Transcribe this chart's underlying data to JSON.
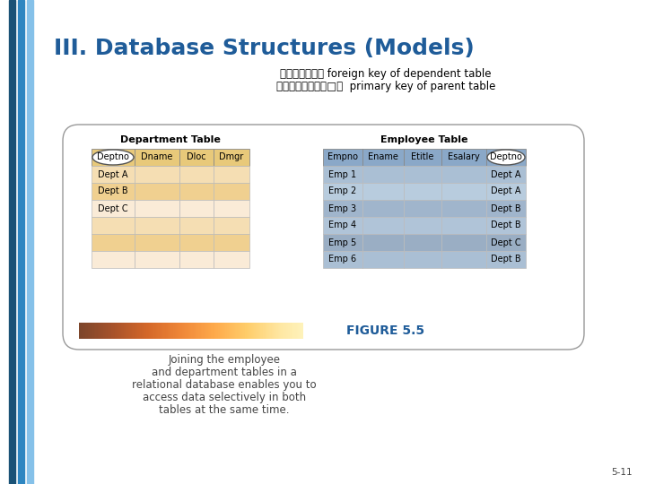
{
  "title": "III. Database Structures (Models)",
  "title_color": "#1F5C99",
  "subtitle_line1": "使用附表之外鍵 foreign key of dependent table",
  "subtitle_line2": "至主表之主鍵進行□找  primary key of parent table",
  "subtitle_color": "#000000",
  "bg_color": "#FFFFFF",
  "left_stripe_colors": [
    "#1A5276",
    "#2E86C1",
    "#85C1E9"
  ],
  "dept_table_title": "Department Table",
  "dept_headers": [
    "Deptno",
    "Dname",
    "Dloc",
    "Dmgr"
  ],
  "dept_rows": [
    [
      "Dept A",
      "",
      "",
      ""
    ],
    [
      "Dept B",
      "",
      "",
      ""
    ],
    [
      "Dept C",
      "",
      "",
      ""
    ],
    [
      "",
      "",
      "",
      ""
    ],
    [
      "",
      "",
      "",
      ""
    ],
    [
      "",
      "",
      "",
      ""
    ]
  ],
  "dept_header_bg": "#E8C97A",
  "dept_row_bgs": [
    "#F5DEB3",
    "#F0D090",
    "#FAEBD7",
    "#F5DEB3",
    "#F0D090",
    "#FAEBD7"
  ],
  "emp_table_title": "Employee Table",
  "emp_headers": [
    "Empno",
    "Ename",
    "Etitle",
    "Esalary",
    "Deptno"
  ],
  "emp_rows": [
    [
      "Emp 1",
      "",
      "",
      "",
      "Dept A"
    ],
    [
      "Emp 2",
      "",
      "",
      "",
      "Dept A"
    ],
    [
      "Emp 3",
      "",
      "",
      "",
      "Dept B"
    ],
    [
      "Emp 4",
      "",
      "",
      "",
      "Dept B"
    ],
    [
      "Emp 5",
      "",
      "",
      "",
      "Dept C"
    ],
    [
      "Emp 6",
      "",
      "",
      "",
      "Dept B"
    ]
  ],
  "emp_header_bg": "#8AA8C8",
  "emp_row_bgs": [
    "#AABFD4",
    "#B8CCDE",
    "#A0B5CC",
    "#B0C4D8",
    "#9AAEC4",
    "#AABFD4"
  ],
  "figure_label": "FIGURE 5.5",
  "figure_label_color": "#1F5C99",
  "figure_caption_lines": [
    "Joining the employee",
    "and department tables in a",
    "relational database enables you to",
    "access data selectively in both",
    "tables at the same time."
  ],
  "figure_caption_color": "#444444",
  "page_number": "5-11",
  "oval_border_color": "#999999",
  "circle_border": "#555555"
}
